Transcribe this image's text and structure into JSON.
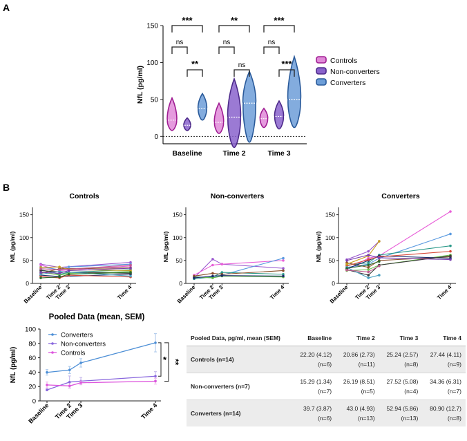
{
  "panel_a_label": "A",
  "panel_b_label": "B",
  "colors": {
    "controls": "#dd55dd",
    "nonconverters": "#8866dd",
    "converters": "#4d8fd6",
    "controls_fill": "#e08ad8",
    "nonconverters_fill": "#8a63cc",
    "converters_fill": "#6d9ed8",
    "controls_edge": "#a01e93",
    "nonconverters_edge": "#4d2a8a",
    "converters_edge": "#2a5a9a"
  },
  "chart_data": [
    {
      "id": "violin",
      "type": "violin",
      "ylabel": "NfL (pg/ml)",
      "ylim": [
        -10,
        150
      ],
      "yticks": [
        "0",
        "50",
        "100",
        "150"
      ],
      "groups": [
        "Baseline",
        "Time 2",
        "Time 3"
      ],
      "legend": [
        "Controls",
        "Non-converters",
        "Converters"
      ],
      "series": [
        {
          "name": "Controls",
          "medians": [
            22,
            19,
            24
          ],
          "ranges": [
            [
              8,
              52
            ],
            [
              4,
              45
            ],
            [
              12,
              38
            ]
          ]
        },
        {
          "name": "Non-converters",
          "medians": [
            15,
            26,
            27
          ],
          "ranges": [
            [
              8,
              25
            ],
            [
              -15,
              78
            ],
            [
              10,
              48
            ]
          ]
        },
        {
          "name": "Converters",
          "medians": [
            38,
            45,
            50
          ],
          "ranges": [
            [
              22,
              58
            ],
            [
              -8,
              88
            ],
            [
              12,
              108
            ]
          ]
        }
      ],
      "significance": [
        {
          "group": "Baseline",
          "low": [
            "ns",
            "**"
          ],
          "high": "***"
        },
        {
          "group": "Time 2",
          "low": [
            "ns",
            "ns"
          ],
          "high": "**"
        },
        {
          "group": "Time 3",
          "low": [
            "ns",
            "***"
          ],
          "high": "***"
        }
      ]
    },
    {
      "id": "spaghetti",
      "type": "line",
      "ylabel": "NfL (pg/ml)",
      "yticks": [
        "0",
        "50",
        "100",
        "150"
      ],
      "ylim": [
        0,
        160
      ],
      "x_labels": [
        "Baseline",
        "Time 2",
        "Time 3",
        "Time 4"
      ],
      "x": [
        0,
        1,
        1.5,
        4.8
      ],
      "panels": [
        {
          "title": "Controls",
          "lines": [
            [
              42,
              35,
              null,
              46
            ],
            [
              40,
              28,
              null,
              38
            ],
            [
              36,
              30,
              36,
              42
            ],
            [
              30,
              20,
              24,
              30
            ],
            [
              25,
              18,
              22,
              26
            ],
            [
              22,
              32,
              null,
              34
            ],
            [
              18,
              15,
              null,
              20
            ],
            [
              15,
              12,
              18,
              14
            ],
            [
              28,
              25,
              null,
              22
            ],
            [
              35,
              36,
              30,
              28
            ],
            [
              20,
              26,
              null,
              16
            ],
            [
              24,
              22,
              28,
              33
            ],
            [
              12,
              14,
              20,
              24
            ],
            [
              32,
              30,
              null,
              40
            ]
          ]
        },
        {
          "title": "Non-converters",
          "lines": [
            [
              12,
              53,
              42,
              33
            ],
            [
              18,
              40,
              42,
              50
            ],
            [
              15,
              12,
              18,
              55
            ],
            [
              10,
              14,
              24,
              20
            ],
            [
              14,
              12,
              16,
              14
            ],
            [
              16,
              22,
              20,
              28
            ],
            [
              12,
              16,
              17,
              16
            ]
          ]
        },
        {
          "title": "Converters",
          "lines": [
            [
              52,
              70,
              92,
              null
            ],
            [
              30,
              55,
              60,
              157
            ],
            [
              35,
              42,
              55,
              108
            ],
            [
              40,
              45,
              62,
              82
            ],
            [
              28,
              30,
              40,
              62
            ],
            [
              45,
              35,
              50,
              58
            ],
            [
              32,
              50,
              60,
              55
            ],
            [
              38,
              52,
              58,
              70
            ],
            [
              30,
              18,
              40,
              60
            ],
            [
              42,
              60,
              92,
              null
            ],
            [
              35,
              12,
              18,
              null
            ],
            [
              50,
              62,
              56,
              52
            ],
            [
              33,
              40,
              48,
              null
            ],
            [
              29,
              25,
              38,
              null
            ]
          ]
        }
      ]
    },
    {
      "id": "pooled",
      "type": "line",
      "title": "Pooled Data (mean, SEM)",
      "ylabel": "NfL (pg/ml)",
      "ylim": [
        0,
        100
      ],
      "yticks": [
        "0",
        "20",
        "40",
        "60",
        "80",
        "100"
      ],
      "x_labels": [
        "Baseline",
        "Time 2",
        "Time 3",
        "Time 4"
      ],
      "x": [
        0,
        1,
        1.5,
        4.8
      ],
      "series": [
        {
          "name": "Converters",
          "values": [
            39.7,
            43.0,
            52.94,
            80.9
          ],
          "sem": [
            3.87,
            4.93,
            5.86,
            12.7
          ]
        },
        {
          "name": "Non-converters",
          "values": [
            15.29,
            26.19,
            27.52,
            34.36
          ],
          "sem": [
            1.34,
            8.51,
            5.08,
            6.31
          ]
        },
        {
          "name": "Controls",
          "values": [
            22.2,
            20.86,
            25.24,
            27.44
          ],
          "sem": [
            4.12,
            2.73,
            2.57,
            4.11
          ]
        }
      ],
      "brackets": [
        "*",
        "**"
      ]
    },
    {
      "id": "table",
      "type": "table",
      "header": [
        "Pooled Data, pg/ml, mean (SEM)",
        "Baseline",
        "Time 2",
        "Time 3",
        "Time 4"
      ],
      "rows": [
        {
          "label": "Controls (n=14)",
          "cells": [
            [
              "22.20 (4.12)",
              "(n=6)"
            ],
            [
              "20.86 (2.73)",
              "(n=11)"
            ],
            [
              "25.24 (2.57)",
              "(n=8)"
            ],
            [
              "27.44 (4.11)",
              "(n=9)"
            ]
          ]
        },
        {
          "label": "Non-converters (n=7)",
          "cells": [
            [
              "15.29 (1.34)",
              "(n=7)"
            ],
            [
              "26.19 (8.51)",
              "(n=5)"
            ],
            [
              "27.52 (5.08)",
              "(n=4)"
            ],
            [
              "34.36 (6.31)",
              "(n=7)"
            ]
          ]
        },
        {
          "label": "Converters (n=14)",
          "cells": [
            [
              "39.7 (3.87)",
              "(n=6)"
            ],
            [
              "43.0 (4.93)",
              "(n=13)"
            ],
            [
              "52.94 (5.86)",
              "(n=13)"
            ],
            [
              "80.90 (12.7)",
              "(n=8)"
            ]
          ]
        }
      ]
    }
  ]
}
